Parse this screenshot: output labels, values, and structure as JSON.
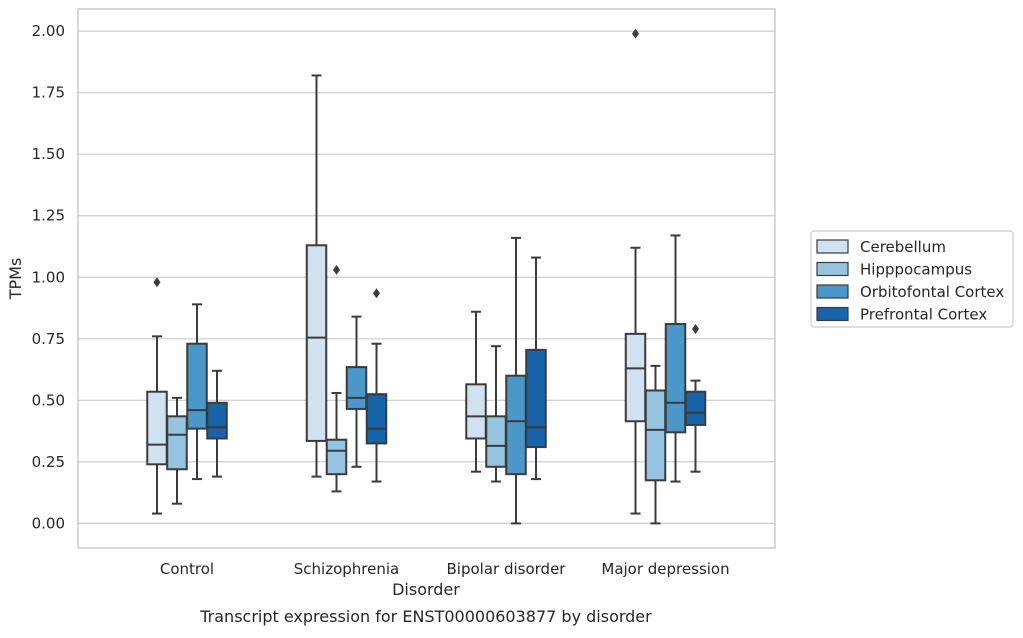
{
  "chart_data": {
    "type": "box",
    "xlabel": "Disorder",
    "ylabel": "TPMs",
    "caption": "Transcript expression for ENST00000603877 by disorder",
    "ylim": [
      -0.1,
      2.09
    ],
    "yticks": [
      "0.00",
      "0.25",
      "0.50",
      "0.75",
      "1.00",
      "1.25",
      "1.50",
      "1.75",
      "2.00"
    ],
    "grid": "horizontal",
    "legend_position": "outside-right",
    "categories": [
      "Control",
      "Schizophrenia",
      "Bipolar disorder",
      "Major depression"
    ],
    "series": [
      {
        "name": "Cerebellum",
        "color": "#d0e1f2",
        "boxes": [
          {
            "whisker_low": 0.04,
            "q1": 0.24,
            "median": 0.32,
            "q3": 0.535,
            "whisker_high": 0.76,
            "outliers": [
              0.98
            ]
          },
          {
            "whisker_low": 0.19,
            "q1": 0.335,
            "median": 0.755,
            "q3": 1.13,
            "whisker_high": 1.82,
            "outliers": []
          },
          {
            "whisker_low": 0.21,
            "q1": 0.345,
            "median": 0.435,
            "q3": 0.565,
            "whisker_high": 0.86,
            "outliers": []
          },
          {
            "whisker_low": 0.04,
            "q1": 0.415,
            "median": 0.63,
            "q3": 0.77,
            "whisker_high": 1.12,
            "outliers": [
              1.99
            ]
          }
        ]
      },
      {
        "name": "Hipppocampus",
        "color": "#94c4df",
        "boxes": [
          {
            "whisker_low": 0.08,
            "q1": 0.22,
            "median": 0.36,
            "q3": 0.435,
            "whisker_high": 0.51,
            "outliers": []
          },
          {
            "whisker_low": 0.13,
            "q1": 0.2,
            "median": 0.295,
            "q3": 0.34,
            "whisker_high": 0.53,
            "outliers": [
              1.03
            ]
          },
          {
            "whisker_low": 0.17,
            "q1": 0.23,
            "median": 0.315,
            "q3": 0.435,
            "whisker_high": 0.72,
            "outliers": []
          },
          {
            "whisker_low": 0.0,
            "q1": 0.175,
            "median": 0.38,
            "q3": 0.54,
            "whisker_high": 0.64,
            "outliers": []
          }
        ]
      },
      {
        "name": "Orbitofontal Cortex",
        "color": "#4a98c9",
        "boxes": [
          {
            "whisker_low": 0.18,
            "q1": 0.385,
            "median": 0.46,
            "q3": 0.73,
            "whisker_high": 0.89,
            "outliers": []
          },
          {
            "whisker_low": 0.23,
            "q1": 0.465,
            "median": 0.51,
            "q3": 0.635,
            "whisker_high": 0.84,
            "outliers": []
          },
          {
            "whisker_low": 0.0,
            "q1": 0.2,
            "median": 0.415,
            "q3": 0.6,
            "whisker_high": 1.16,
            "outliers": []
          },
          {
            "whisker_low": 0.17,
            "q1": 0.37,
            "median": 0.49,
            "q3": 0.81,
            "whisker_high": 1.17,
            "outliers": []
          }
        ]
      },
      {
        "name": "Prefrontal Cortex",
        "color": "#1764ab",
        "boxes": [
          {
            "whisker_low": 0.19,
            "q1": 0.345,
            "median": 0.39,
            "q3": 0.49,
            "whisker_high": 0.62,
            "outliers": []
          },
          {
            "whisker_low": 0.17,
            "q1": 0.325,
            "median": 0.385,
            "q3": 0.525,
            "whisker_high": 0.73,
            "outliers": [
              0.935
            ]
          },
          {
            "whisker_low": 0.18,
            "q1": 0.31,
            "median": 0.39,
            "q3": 0.705,
            "whisker_high": 1.08,
            "outliers": []
          },
          {
            "whisker_low": 0.21,
            "q1": 0.4,
            "median": 0.45,
            "q3": 0.535,
            "whisker_high": 0.58,
            "outliers": [
              0.79
            ]
          }
        ]
      }
    ]
  }
}
